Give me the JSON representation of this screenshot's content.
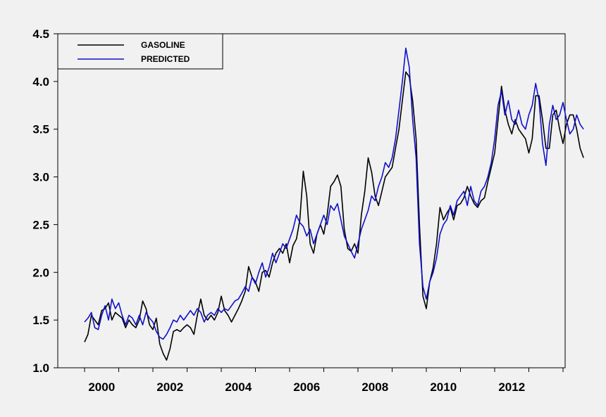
{
  "chart_data": {
    "type": "line",
    "title": "",
    "xlabel": "",
    "ylabel": "",
    "xlim": [
      1999.5,
      2014.5
    ],
    "ylim": [
      1.0,
      4.5
    ],
    "yticks": [
      "1.0",
      "1.5",
      "2.0",
      "2.5",
      "3.0",
      "3.5",
      "4.0",
      "4.5"
    ],
    "xticks": [
      "2000",
      "2002",
      "2004",
      "2006",
      "2008",
      "2010",
      "2012"
    ],
    "grid": false,
    "legend_position": "top-left",
    "series": [
      {
        "name": "GASOLINE",
        "color": "#000000",
        "points": [
          [
            2000.0,
            1.27
          ],
          [
            2000.1,
            1.35
          ],
          [
            2000.2,
            1.55
          ],
          [
            2000.3,
            1.5
          ],
          [
            2000.4,
            1.45
          ],
          [
            2000.5,
            1.6
          ],
          [
            2000.6,
            1.62
          ],
          [
            2000.7,
            1.68
          ],
          [
            2000.8,
            1.5
          ],
          [
            2000.9,
            1.58
          ],
          [
            2001.0,
            1.55
          ],
          [
            2001.1,
            1.52
          ],
          [
            2001.2,
            1.42
          ],
          [
            2001.3,
            1.5
          ],
          [
            2001.4,
            1.45
          ],
          [
            2001.5,
            1.42
          ],
          [
            2001.6,
            1.5
          ],
          [
            2001.7,
            1.7
          ],
          [
            2001.8,
            1.62
          ],
          [
            2001.9,
            1.45
          ],
          [
            2002.0,
            1.4
          ],
          [
            2002.1,
            1.52
          ],
          [
            2002.2,
            1.25
          ],
          [
            2002.3,
            1.15
          ],
          [
            2002.4,
            1.08
          ],
          [
            2002.5,
            1.2
          ],
          [
            2002.6,
            1.38
          ],
          [
            2002.7,
            1.4
          ],
          [
            2002.8,
            1.38
          ],
          [
            2002.9,
            1.42
          ],
          [
            2003.0,
            1.45
          ],
          [
            2003.1,
            1.42
          ],
          [
            2003.2,
            1.35
          ],
          [
            2003.3,
            1.55
          ],
          [
            2003.4,
            1.72
          ],
          [
            2003.5,
            1.55
          ],
          [
            2003.6,
            1.5
          ],
          [
            2003.7,
            1.55
          ],
          [
            2003.8,
            1.5
          ],
          [
            2003.9,
            1.58
          ],
          [
            2004.0,
            1.75
          ],
          [
            2004.1,
            1.6
          ],
          [
            2004.2,
            1.55
          ],
          [
            2004.3,
            1.48
          ],
          [
            2004.4,
            1.55
          ],
          [
            2004.5,
            1.62
          ],
          [
            2004.6,
            1.7
          ],
          [
            2004.7,
            1.8
          ],
          [
            2004.8,
            2.06
          ],
          [
            2004.9,
            1.95
          ],
          [
            2005.0,
            1.9
          ],
          [
            2005.1,
            1.8
          ],
          [
            2005.2,
            2.0
          ],
          [
            2005.3,
            2.02
          ],
          [
            2005.4,
            1.95
          ],
          [
            2005.5,
            2.1
          ],
          [
            2005.6,
            2.2
          ],
          [
            2005.7,
            2.25
          ],
          [
            2005.8,
            2.2
          ],
          [
            2005.9,
            2.3
          ],
          [
            2006.0,
            2.1
          ],
          [
            2006.1,
            2.28
          ],
          [
            2006.2,
            2.35
          ],
          [
            2006.3,
            2.55
          ],
          [
            2006.4,
            3.06
          ],
          [
            2006.5,
            2.8
          ],
          [
            2006.6,
            2.3
          ],
          [
            2006.7,
            2.2
          ],
          [
            2006.8,
            2.4
          ],
          [
            2006.9,
            2.5
          ],
          [
            2007.0,
            2.4
          ],
          [
            2007.1,
            2.6
          ],
          [
            2007.2,
            2.9
          ],
          [
            2007.3,
            2.95
          ],
          [
            2007.4,
            3.02
          ],
          [
            2007.5,
            2.9
          ],
          [
            2007.6,
            2.45
          ],
          [
            2007.7,
            2.25
          ],
          [
            2007.8,
            2.22
          ],
          [
            2007.9,
            2.3
          ],
          [
            2008.0,
            2.2
          ],
          [
            2008.1,
            2.6
          ],
          [
            2008.2,
            2.85
          ],
          [
            2008.3,
            3.2
          ],
          [
            2008.4,
            3.05
          ],
          [
            2008.5,
            2.8
          ],
          [
            2008.6,
            2.7
          ],
          [
            2008.7,
            2.85
          ],
          [
            2008.8,
            3.0
          ],
          [
            2008.9,
            3.05
          ],
          [
            2009.0,
            3.1
          ],
          [
            2009.1,
            3.3
          ],
          [
            2009.2,
            3.5
          ],
          [
            2009.3,
            3.8
          ],
          [
            2009.4,
            4.1
          ],
          [
            2009.5,
            4.05
          ],
          [
            2009.6,
            3.8
          ],
          [
            2009.7,
            3.4
          ],
          [
            2009.8,
            2.5
          ],
          [
            2009.9,
            1.75
          ],
          [
            2010.0,
            1.62
          ],
          [
            2010.1,
            1.9
          ],
          [
            2010.2,
            2.05
          ],
          [
            2010.3,
            2.3
          ],
          [
            2010.4,
            2.68
          ],
          [
            2010.5,
            2.55
          ],
          [
            2010.6,
            2.62
          ],
          [
            2010.7,
            2.68
          ],
          [
            2010.8,
            2.55
          ],
          [
            2010.9,
            2.7
          ],
          [
            2011.0,
            2.72
          ],
          [
            2011.1,
            2.78
          ],
          [
            2011.2,
            2.9
          ],
          [
            2011.3,
            2.8
          ],
          [
            2011.4,
            2.72
          ],
          [
            2011.5,
            2.68
          ],
          [
            2011.6,
            2.75
          ],
          [
            2011.7,
            2.78
          ],
          [
            2011.8,
            2.95
          ],
          [
            2011.9,
            3.1
          ],
          [
            2012.0,
            3.25
          ],
          [
            2012.1,
            3.6
          ],
          [
            2012.2,
            3.95
          ],
          [
            2012.3,
            3.7
          ],
          [
            2012.4,
            3.55
          ],
          [
            2012.5,
            3.45
          ],
          [
            2012.6,
            3.6
          ],
          [
            2012.7,
            3.5
          ],
          [
            2012.8,
            3.45
          ],
          [
            2012.9,
            3.4
          ],
          [
            2013.0,
            3.25
          ],
          [
            2013.1,
            3.4
          ],
          [
            2013.2,
            3.85
          ],
          [
            2013.3,
            3.85
          ],
          [
            2013.4,
            3.6
          ],
          [
            2013.5,
            3.3
          ],
          [
            2013.6,
            3.3
          ],
          [
            2013.7,
            3.65
          ],
          [
            2013.8,
            3.7
          ],
          [
            2013.9,
            3.5
          ],
          [
            2014.0,
            3.35
          ],
          [
            2014.1,
            3.55
          ],
          [
            2014.2,
            3.65
          ],
          [
            2014.3,
            3.65
          ],
          [
            2014.4,
            3.5
          ],
          [
            2014.5,
            3.3
          ],
          [
            2014.6,
            3.2
          ]
        ]
      },
      {
        "name": "PREDICTED",
        "color": "#1010cc",
        "points": [
          [
            2000.0,
            1.48
          ],
          [
            2000.1,
            1.52
          ],
          [
            2000.2,
            1.58
          ],
          [
            2000.3,
            1.42
          ],
          [
            2000.4,
            1.4
          ],
          [
            2000.5,
            1.55
          ],
          [
            2000.6,
            1.65
          ],
          [
            2000.7,
            1.5
          ],
          [
            2000.8,
            1.72
          ],
          [
            2000.9,
            1.62
          ],
          [
            2001.0,
            1.68
          ],
          [
            2001.1,
            1.55
          ],
          [
            2001.2,
            1.45
          ],
          [
            2001.3,
            1.55
          ],
          [
            2001.4,
            1.52
          ],
          [
            2001.5,
            1.45
          ],
          [
            2001.6,
            1.55
          ],
          [
            2001.7,
            1.45
          ],
          [
            2001.8,
            1.58
          ],
          [
            2001.9,
            1.52
          ],
          [
            2002.0,
            1.48
          ],
          [
            2002.1,
            1.38
          ],
          [
            2002.2,
            1.32
          ],
          [
            2002.3,
            1.3
          ],
          [
            2002.4,
            1.35
          ],
          [
            2002.5,
            1.42
          ],
          [
            2002.6,
            1.5
          ],
          [
            2002.7,
            1.48
          ],
          [
            2002.8,
            1.55
          ],
          [
            2002.9,
            1.5
          ],
          [
            2003.0,
            1.55
          ],
          [
            2003.1,
            1.6
          ],
          [
            2003.2,
            1.55
          ],
          [
            2003.3,
            1.62
          ],
          [
            2003.4,
            1.58
          ],
          [
            2003.5,
            1.48
          ],
          [
            2003.6,
            1.55
          ],
          [
            2003.7,
            1.58
          ],
          [
            2003.8,
            1.55
          ],
          [
            2003.9,
            1.62
          ],
          [
            2004.0,
            1.58
          ],
          [
            2004.1,
            1.62
          ],
          [
            2004.2,
            1.6
          ],
          [
            2004.3,
            1.65
          ],
          [
            2004.4,
            1.7
          ],
          [
            2004.5,
            1.72
          ],
          [
            2004.6,
            1.78
          ],
          [
            2004.7,
            1.85
          ],
          [
            2004.8,
            1.8
          ],
          [
            2004.9,
            1.95
          ],
          [
            2005.0,
            1.88
          ],
          [
            2005.1,
            2.0
          ],
          [
            2005.2,
            2.1
          ],
          [
            2005.3,
            1.95
          ],
          [
            2005.4,
            2.05
          ],
          [
            2005.5,
            2.2
          ],
          [
            2005.6,
            2.1
          ],
          [
            2005.7,
            2.2
          ],
          [
            2005.8,
            2.3
          ],
          [
            2005.9,
            2.25
          ],
          [
            2006.0,
            2.35
          ],
          [
            2006.1,
            2.45
          ],
          [
            2006.2,
            2.6
          ],
          [
            2006.3,
            2.52
          ],
          [
            2006.4,
            2.48
          ],
          [
            2006.5,
            2.38
          ],
          [
            2006.6,
            2.45
          ],
          [
            2006.7,
            2.3
          ],
          [
            2006.8,
            2.4
          ],
          [
            2006.9,
            2.5
          ],
          [
            2007.0,
            2.6
          ],
          [
            2007.1,
            2.5
          ],
          [
            2007.2,
            2.7
          ],
          [
            2007.3,
            2.65
          ],
          [
            2007.4,
            2.72
          ],
          [
            2007.5,
            2.55
          ],
          [
            2007.6,
            2.38
          ],
          [
            2007.7,
            2.3
          ],
          [
            2007.8,
            2.22
          ],
          [
            2007.9,
            2.15
          ],
          [
            2008.0,
            2.3
          ],
          [
            2008.1,
            2.45
          ],
          [
            2008.2,
            2.55
          ],
          [
            2008.3,
            2.65
          ],
          [
            2008.4,
            2.8
          ],
          [
            2008.5,
            2.75
          ],
          [
            2008.6,
            2.9
          ],
          [
            2008.7,
            3.0
          ],
          [
            2008.8,
            3.15
          ],
          [
            2008.9,
            3.1
          ],
          [
            2009.0,
            3.2
          ],
          [
            2009.1,
            3.4
          ],
          [
            2009.2,
            3.7
          ],
          [
            2009.3,
            4.0
          ],
          [
            2009.4,
            4.35
          ],
          [
            2009.5,
            4.15
          ],
          [
            2009.6,
            3.6
          ],
          [
            2009.7,
            3.2
          ],
          [
            2009.8,
            2.3
          ],
          [
            2009.9,
            1.85
          ],
          [
            2010.0,
            1.72
          ],
          [
            2010.1,
            1.9
          ],
          [
            2010.2,
            2.0
          ],
          [
            2010.3,
            2.15
          ],
          [
            2010.4,
            2.4
          ],
          [
            2010.5,
            2.5
          ],
          [
            2010.6,
            2.55
          ],
          [
            2010.7,
            2.7
          ],
          [
            2010.8,
            2.6
          ],
          [
            2010.9,
            2.75
          ],
          [
            2011.0,
            2.8
          ],
          [
            2011.1,
            2.85
          ],
          [
            2011.2,
            2.7
          ],
          [
            2011.3,
            2.9
          ],
          [
            2011.4,
            2.75
          ],
          [
            2011.5,
            2.7
          ],
          [
            2011.6,
            2.85
          ],
          [
            2011.7,
            2.9
          ],
          [
            2011.8,
            3.0
          ],
          [
            2011.9,
            3.15
          ],
          [
            2012.0,
            3.4
          ],
          [
            2012.1,
            3.75
          ],
          [
            2012.2,
            3.9
          ],
          [
            2012.3,
            3.65
          ],
          [
            2012.4,
            3.8
          ],
          [
            2012.5,
            3.6
          ],
          [
            2012.6,
            3.55
          ],
          [
            2012.7,
            3.7
          ],
          [
            2012.8,
            3.55
          ],
          [
            2012.9,
            3.5
          ],
          [
            2013.0,
            3.65
          ],
          [
            2013.1,
            3.75
          ],
          [
            2013.2,
            3.98
          ],
          [
            2013.3,
            3.8
          ],
          [
            2013.4,
            3.35
          ],
          [
            2013.5,
            3.12
          ],
          [
            2013.6,
            3.55
          ],
          [
            2013.7,
            3.75
          ],
          [
            2013.8,
            3.6
          ],
          [
            2013.9,
            3.65
          ],
          [
            2014.0,
            3.78
          ],
          [
            2014.1,
            3.6
          ],
          [
            2014.2,
            3.45
          ],
          [
            2014.3,
            3.5
          ],
          [
            2014.4,
            3.65
          ],
          [
            2014.5,
            3.55
          ],
          [
            2014.6,
            3.5
          ]
        ]
      }
    ]
  }
}
